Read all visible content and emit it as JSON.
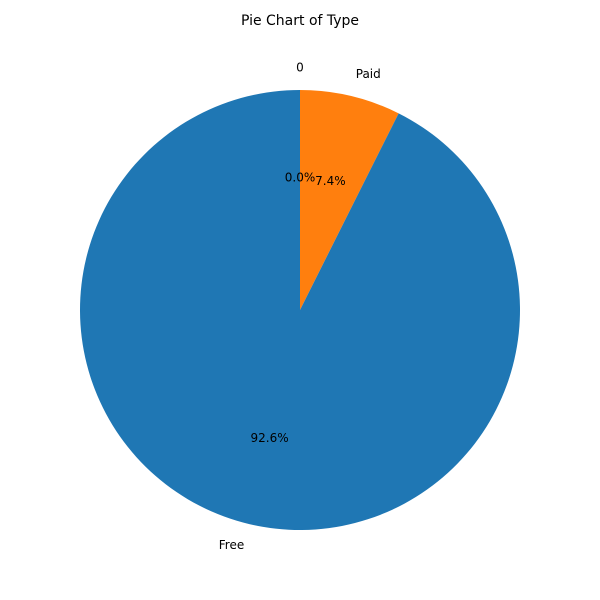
{
  "chart_data": {
    "type": "pie",
    "title": "Pie Chart of Type",
    "start_angle": "top",
    "direction": "clockwise",
    "slices": [
      {
        "label": "0",
        "value": 0.0,
        "pct_label": "0.0%",
        "color": "#2ca02c"
      },
      {
        "label": "Paid",
        "value": 7.4,
        "pct_label": "7.4%",
        "color": "#ff7f0e"
      },
      {
        "label": "Free",
        "value": 92.6,
        "pct_label": "92.6%",
        "color": "#1f77b4"
      }
    ]
  }
}
